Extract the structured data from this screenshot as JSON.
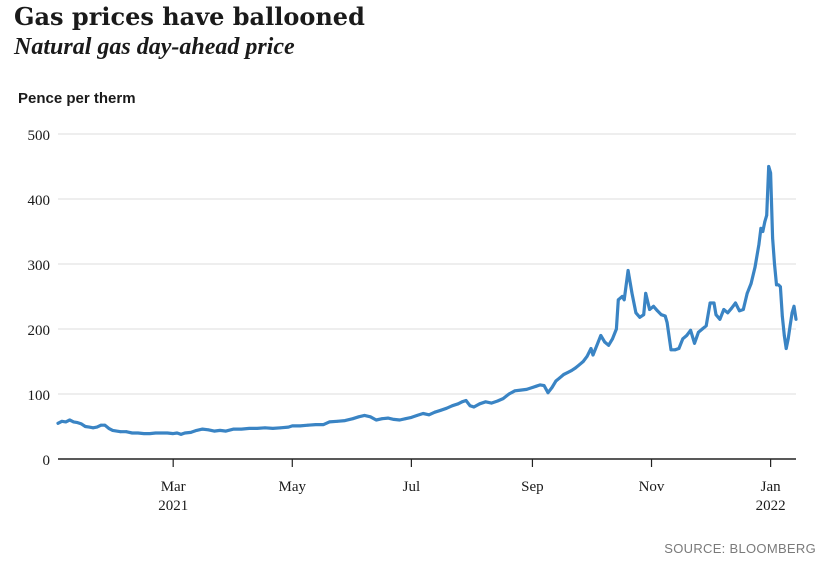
{
  "header": {
    "title": "Gas prices have ballooned",
    "subtitle": "Natural gas day-ahead price",
    "unit_label": "Pence per therm"
  },
  "footer": {
    "source": "SOURCE: BLOOMBERG"
  },
  "colors": {
    "line": "#3a84c4",
    "grid": "#dddddd",
    "axis": "#222222",
    "text": "#1a1a1a"
  },
  "chart_data": {
    "type": "line",
    "title": "Gas prices have ballooned",
    "subtitle": "Natural gas day-ahead price",
    "ylabel": "Pence per therm",
    "xlabel": "",
    "ylim": [
      0,
      500
    ],
    "xlim": [
      "2021-01-01",
      "2022-01-14"
    ],
    "grid": "horizontal",
    "yticks": [
      {
        "value": 0,
        "label": "0"
      },
      {
        "value": 100,
        "label": "100"
      },
      {
        "value": 200,
        "label": "200"
      },
      {
        "value": 300,
        "label": "300"
      },
      {
        "value": 400,
        "label": "400"
      },
      {
        "value": 500,
        "label": "500"
      }
    ],
    "xticks": [
      {
        "date": "2021-03-01",
        "label": "Mar",
        "sub": "2021"
      },
      {
        "date": "2021-05-01",
        "label": "May",
        "sub": ""
      },
      {
        "date": "2021-07-01",
        "label": "Jul",
        "sub": ""
      },
      {
        "date": "2021-09-01",
        "label": "Sep",
        "sub": ""
      },
      {
        "date": "2021-11-01",
        "label": "Nov",
        "sub": ""
      },
      {
        "date": "2022-01-01",
        "label": "Jan",
        "sub": "2022"
      }
    ],
    "series": [
      {
        "points": [
          [
            "2021-01-01",
            55
          ],
          [
            "2021-01-03",
            58
          ],
          [
            "2021-01-05",
            57
          ],
          [
            "2021-01-07",
            60
          ],
          [
            "2021-01-09",
            57
          ],
          [
            "2021-01-11",
            56
          ],
          [
            "2021-01-13",
            54
          ],
          [
            "2021-01-15",
            50
          ],
          [
            "2021-01-17",
            49
          ],
          [
            "2021-01-19",
            48
          ],
          [
            "2021-01-21",
            49
          ],
          [
            "2021-01-23",
            52
          ],
          [
            "2021-01-25",
            52
          ],
          [
            "2021-01-27",
            47
          ],
          [
            "2021-01-29",
            44
          ],
          [
            "2021-01-31",
            43
          ],
          [
            "2021-02-02",
            42
          ],
          [
            "2021-02-05",
            42
          ],
          [
            "2021-02-08",
            40
          ],
          [
            "2021-02-11",
            40
          ],
          [
            "2021-02-14",
            39
          ],
          [
            "2021-02-17",
            39
          ],
          [
            "2021-02-20",
            40
          ],
          [
            "2021-02-23",
            40
          ],
          [
            "2021-02-26",
            40
          ],
          [
            "2021-03-01",
            39
          ],
          [
            "2021-03-03",
            40
          ],
          [
            "2021-03-05",
            38
          ],
          [
            "2021-03-07",
            40
          ],
          [
            "2021-03-10",
            41
          ],
          [
            "2021-03-13",
            44
          ],
          [
            "2021-03-16",
            46
          ],
          [
            "2021-03-19",
            45
          ],
          [
            "2021-03-22",
            43
          ],
          [
            "2021-03-25",
            44
          ],
          [
            "2021-03-28",
            43
          ],
          [
            "2021-04-01",
            46
          ],
          [
            "2021-04-05",
            46
          ],
          [
            "2021-04-09",
            47
          ],
          [
            "2021-04-13",
            47
          ],
          [
            "2021-04-17",
            48
          ],
          [
            "2021-04-21",
            47
          ],
          [
            "2021-04-25",
            48
          ],
          [
            "2021-04-29",
            49
          ],
          [
            "2021-05-01",
            51
          ],
          [
            "2021-05-05",
            51
          ],
          [
            "2021-05-09",
            52
          ],
          [
            "2021-05-13",
            53
          ],
          [
            "2021-05-17",
            53
          ],
          [
            "2021-05-20",
            57
          ],
          [
            "2021-05-24",
            58
          ],
          [
            "2021-05-28",
            59
          ],
          [
            "2021-06-01",
            62
          ],
          [
            "2021-06-04",
            65
          ],
          [
            "2021-06-07",
            67
          ],
          [
            "2021-06-10",
            65
          ],
          [
            "2021-06-13",
            60
          ],
          [
            "2021-06-16",
            62
          ],
          [
            "2021-06-19",
            63
          ],
          [
            "2021-06-22",
            61
          ],
          [
            "2021-06-25",
            60
          ],
          [
            "2021-06-28",
            62
          ],
          [
            "2021-07-01",
            64
          ],
          [
            "2021-07-04",
            67
          ],
          [
            "2021-07-07",
            70
          ],
          [
            "2021-07-10",
            68
          ],
          [
            "2021-07-13",
            72
          ],
          [
            "2021-07-16",
            75
          ],
          [
            "2021-07-19",
            78
          ],
          [
            "2021-07-22",
            82
          ],
          [
            "2021-07-25",
            85
          ],
          [
            "2021-07-27",
            88
          ],
          [
            "2021-07-29",
            90
          ],
          [
            "2021-07-31",
            82
          ],
          [
            "2021-08-02",
            80
          ],
          [
            "2021-08-05",
            85
          ],
          [
            "2021-08-08",
            88
          ],
          [
            "2021-08-11",
            86
          ],
          [
            "2021-08-14",
            89
          ],
          [
            "2021-08-17",
            93
          ],
          [
            "2021-08-20",
            100
          ],
          [
            "2021-08-23",
            105
          ],
          [
            "2021-08-26",
            106
          ],
          [
            "2021-08-29",
            107
          ],
          [
            "2021-09-01",
            110
          ],
          [
            "2021-09-03",
            112
          ],
          [
            "2021-09-05",
            114
          ],
          [
            "2021-09-07",
            113
          ],
          [
            "2021-09-09",
            102
          ],
          [
            "2021-09-11",
            110
          ],
          [
            "2021-09-13",
            120
          ],
          [
            "2021-09-15",
            125
          ],
          [
            "2021-09-17",
            130
          ],
          [
            "2021-09-19",
            133
          ],
          [
            "2021-09-21",
            136
          ],
          [
            "2021-09-23",
            140
          ],
          [
            "2021-09-25",
            145
          ],
          [
            "2021-09-27",
            150
          ],
          [
            "2021-09-29",
            158
          ],
          [
            "2021-10-01",
            170
          ],
          [
            "2021-10-02",
            160
          ],
          [
            "2021-10-04",
            175
          ],
          [
            "2021-10-06",
            190
          ],
          [
            "2021-10-08",
            180
          ],
          [
            "2021-10-10",
            175
          ],
          [
            "2021-10-12",
            185
          ],
          [
            "2021-10-14",
            200
          ],
          [
            "2021-10-15",
            245
          ],
          [
            "2021-10-17",
            250
          ],
          [
            "2021-10-18",
            245
          ],
          [
            "2021-10-20",
            290
          ],
          [
            "2021-10-22",
            255
          ],
          [
            "2021-10-24",
            225
          ],
          [
            "2021-10-26",
            218
          ],
          [
            "2021-10-28",
            222
          ],
          [
            "2021-10-29",
            255
          ],
          [
            "2021-10-31",
            230
          ],
          [
            "2021-11-02",
            235
          ],
          [
            "2021-11-04",
            228
          ],
          [
            "2021-11-06",
            222
          ],
          [
            "2021-11-08",
            220
          ],
          [
            "2021-11-09",
            210
          ],
          [
            "2021-11-11",
            168
          ],
          [
            "2021-11-13",
            168
          ],
          [
            "2021-11-15",
            170
          ],
          [
            "2021-11-17",
            185
          ],
          [
            "2021-11-19",
            190
          ],
          [
            "2021-11-21",
            198
          ],
          [
            "2021-11-23",
            178
          ],
          [
            "2021-11-25",
            195
          ],
          [
            "2021-11-27",
            200
          ],
          [
            "2021-11-29",
            205
          ],
          [
            "2021-12-01",
            240
          ],
          [
            "2021-12-03",
            240
          ],
          [
            "2021-12-04",
            222
          ],
          [
            "2021-12-06",
            215
          ],
          [
            "2021-12-08",
            230
          ],
          [
            "2021-12-10",
            225
          ],
          [
            "2021-12-12",
            232
          ],
          [
            "2021-12-14",
            240
          ],
          [
            "2021-12-16",
            228
          ],
          [
            "2021-12-18",
            230
          ],
          [
            "2021-12-20",
            255
          ],
          [
            "2021-12-22",
            270
          ],
          [
            "2021-12-24",
            295
          ],
          [
            "2021-12-26",
            330
          ],
          [
            "2021-12-27",
            355
          ],
          [
            "2021-12-28",
            350
          ],
          [
            "2021-12-29",
            365
          ],
          [
            "2021-12-30",
            375
          ],
          [
            "2021-12-31",
            450
          ],
          [
            "2022-01-01",
            440
          ],
          [
            "2022-01-02",
            340
          ],
          [
            "2022-01-03",
            300
          ],
          [
            "2022-01-04",
            268
          ],
          [
            "2022-01-05",
            268
          ],
          [
            "2022-01-06",
            265
          ],
          [
            "2022-01-07",
            220
          ],
          [
            "2022-01-08",
            190
          ],
          [
            "2022-01-09",
            170
          ],
          [
            "2022-01-10",
            185
          ],
          [
            "2022-01-11",
            205
          ],
          [
            "2022-01-12",
            225
          ],
          [
            "2022-01-13",
            235
          ],
          [
            "2022-01-14",
            215
          ]
        ]
      }
    ]
  }
}
